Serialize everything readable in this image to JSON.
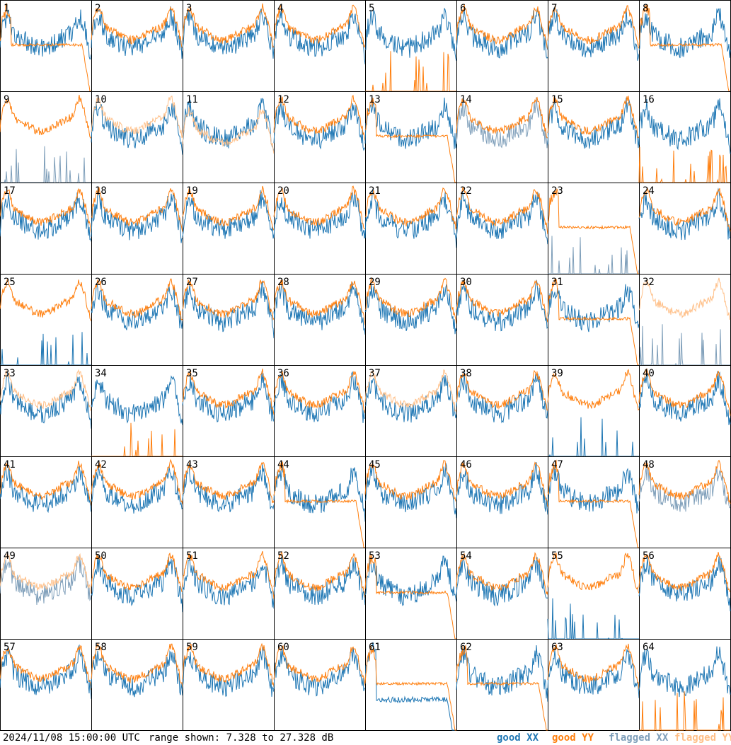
{
  "footer": {
    "timestamp": "2024/11/08 15:00:00 UTC",
    "range": "range shown: 7.328 to 27.328 dB"
  },
  "legend": [
    {
      "label": "good XX",
      "color": "#1f77b4"
    },
    {
      "label": "good YY",
      "color": "#ff7f0e"
    },
    {
      "label": "flagged XX",
      "color": "#7f9fba"
    },
    {
      "label": "flagged YY",
      "color": "#ffbf87"
    }
  ],
  "chart_data": {
    "type": "line",
    "layout": "small multiples",
    "ylim": [
      7.328,
      27.328
    ],
    "yunit": "dB",
    "panels": [
      {
        "id": "1",
        "xx": "good",
        "yy": "good",
        "yy_shape": "drop"
      },
      {
        "id": "2",
        "xx": "good",
        "yy": "good",
        "yy_shape": "normal"
      },
      {
        "id": "3",
        "xx": "good",
        "yy": "good",
        "yy_shape": "normal"
      },
      {
        "id": "4",
        "xx": "good",
        "yy": "good",
        "yy_shape": "normal"
      },
      {
        "id": "5",
        "xx": "good",
        "yy": "good",
        "yy_shape": "spikes"
      },
      {
        "id": "6",
        "xx": "good",
        "yy": "good",
        "yy_shape": "normal"
      },
      {
        "id": "7",
        "xx": "good",
        "yy": "good",
        "yy_shape": "normal"
      },
      {
        "id": "8",
        "xx": "good",
        "yy": "good",
        "yy_shape": "drop"
      },
      {
        "id": "9",
        "xx": "flagged",
        "yy": "good",
        "xx_shape": "spikes"
      },
      {
        "id": "10",
        "xx": "good",
        "yy": "flagged",
        "yy_shape": "normal"
      },
      {
        "id": "11",
        "xx": "good",
        "yy": "flagged",
        "yy_shape": "low"
      },
      {
        "id": "12",
        "xx": "good",
        "yy": "good",
        "yy_shape": "normal"
      },
      {
        "id": "13",
        "xx": "good",
        "yy": "good",
        "yy_shape": "drop"
      },
      {
        "id": "14",
        "xx": "flagged",
        "yy": "good",
        "yy_shape": "normal"
      },
      {
        "id": "15",
        "xx": "good",
        "yy": "good",
        "yy_shape": "normal"
      },
      {
        "id": "16",
        "xx": "good",
        "yy": "good",
        "yy_shape": "spikes"
      },
      {
        "id": "17",
        "xx": "good",
        "yy": "good",
        "yy_shape": "normal"
      },
      {
        "id": "18",
        "xx": "good",
        "yy": "good",
        "yy_shape": "normal"
      },
      {
        "id": "19",
        "xx": "good",
        "yy": "good",
        "yy_shape": "normal"
      },
      {
        "id": "20",
        "xx": "good",
        "yy": "good",
        "yy_shape": "normal"
      },
      {
        "id": "21",
        "xx": "good",
        "yy": "good",
        "yy_shape": "normal"
      },
      {
        "id": "22",
        "xx": "good",
        "yy": "good",
        "yy_shape": "normal"
      },
      {
        "id": "23",
        "xx": "flagged",
        "yy": "good",
        "xx_shape": "spikes",
        "yy_shape": "drop"
      },
      {
        "id": "24",
        "xx": "good",
        "yy": "good",
        "yy_shape": "normal"
      },
      {
        "id": "25",
        "xx": "good",
        "yy": "good",
        "xx_shape": "spikes"
      },
      {
        "id": "26",
        "xx": "good",
        "yy": "good",
        "yy_shape": "normal"
      },
      {
        "id": "27",
        "xx": "good",
        "yy": "good",
        "yy_shape": "normal"
      },
      {
        "id": "28",
        "xx": "good",
        "yy": "good",
        "yy_shape": "normal"
      },
      {
        "id": "29",
        "xx": "good",
        "yy": "good",
        "yy_shape": "normal"
      },
      {
        "id": "30",
        "xx": "good",
        "yy": "good",
        "yy_shape": "normal"
      },
      {
        "id": "31",
        "xx": "good",
        "yy": "good",
        "yy_shape": "drop"
      },
      {
        "id": "32",
        "xx": "flagged",
        "yy": "flagged",
        "xx_shape": "spikes",
        "yy_shape": "normal"
      },
      {
        "id": "33",
        "xx": "good",
        "yy": "flagged",
        "yy_shape": "normal"
      },
      {
        "id": "34",
        "xx": "good",
        "yy": "good",
        "yy_shape": "spikes"
      },
      {
        "id": "35",
        "xx": "good",
        "yy": "good",
        "yy_shape": "normal"
      },
      {
        "id": "36",
        "xx": "good",
        "yy": "good",
        "yy_shape": "normal"
      },
      {
        "id": "37",
        "xx": "good",
        "yy": "flagged",
        "yy_shape": "normal"
      },
      {
        "id": "38",
        "xx": "good",
        "yy": "good",
        "yy_shape": "normal"
      },
      {
        "id": "39",
        "xx": "good",
        "yy": "good",
        "xx_shape": "spikes"
      },
      {
        "id": "40",
        "xx": "good",
        "yy": "good",
        "yy_shape": "normal"
      },
      {
        "id": "41",
        "xx": "good",
        "yy": "good",
        "yy_shape": "normal"
      },
      {
        "id": "42",
        "xx": "good",
        "yy": "good",
        "yy_shape": "normal"
      },
      {
        "id": "43",
        "xx": "good",
        "yy": "good",
        "yy_shape": "normal"
      },
      {
        "id": "44",
        "xx": "good",
        "yy": "good",
        "yy_shape": "drop"
      },
      {
        "id": "45",
        "xx": "good",
        "yy": "good",
        "yy_shape": "normal"
      },
      {
        "id": "46",
        "xx": "good",
        "yy": "good",
        "yy_shape": "normal"
      },
      {
        "id": "47",
        "xx": "good",
        "yy": "good",
        "yy_shape": "drop"
      },
      {
        "id": "48",
        "xx": "flagged",
        "yy": "good",
        "yy_shape": "normal"
      },
      {
        "id": "49",
        "xx": "flagged",
        "yy": "flagged",
        "yy_shape": "normal"
      },
      {
        "id": "50",
        "xx": "good",
        "yy": "good",
        "yy_shape": "normal"
      },
      {
        "id": "51",
        "xx": "good",
        "yy": "good",
        "yy_shape": "normal"
      },
      {
        "id": "52",
        "xx": "good",
        "yy": "good",
        "yy_shape": "normal"
      },
      {
        "id": "53",
        "xx": "good",
        "yy": "good",
        "yy_shape": "drop"
      },
      {
        "id": "54",
        "xx": "good",
        "yy": "good",
        "yy_shape": "normal"
      },
      {
        "id": "55",
        "xx": "good",
        "yy": "good",
        "xx_shape": "spikes"
      },
      {
        "id": "56",
        "xx": "good",
        "yy": "good",
        "yy_shape": "normal"
      },
      {
        "id": "57",
        "xx": "good",
        "yy": "good",
        "yy_shape": "normal"
      },
      {
        "id": "58",
        "xx": "good",
        "yy": "good",
        "yy_shape": "normal"
      },
      {
        "id": "59",
        "xx": "good",
        "yy": "good",
        "yy_shape": "normal"
      },
      {
        "id": "60",
        "xx": "good",
        "yy": "good",
        "yy_shape": "normal"
      },
      {
        "id": "61",
        "xx": "good",
        "yy": "good",
        "xx_shape": "drop",
        "yy_shape": "drop"
      },
      {
        "id": "62",
        "xx": "good",
        "yy": "good",
        "yy_shape": "drop"
      },
      {
        "id": "63",
        "xx": "good",
        "yy": "good",
        "yy_shape": "normal"
      },
      {
        "id": "64",
        "xx": "good",
        "yy": "good",
        "yy_shape": "spikes"
      }
    ]
  }
}
